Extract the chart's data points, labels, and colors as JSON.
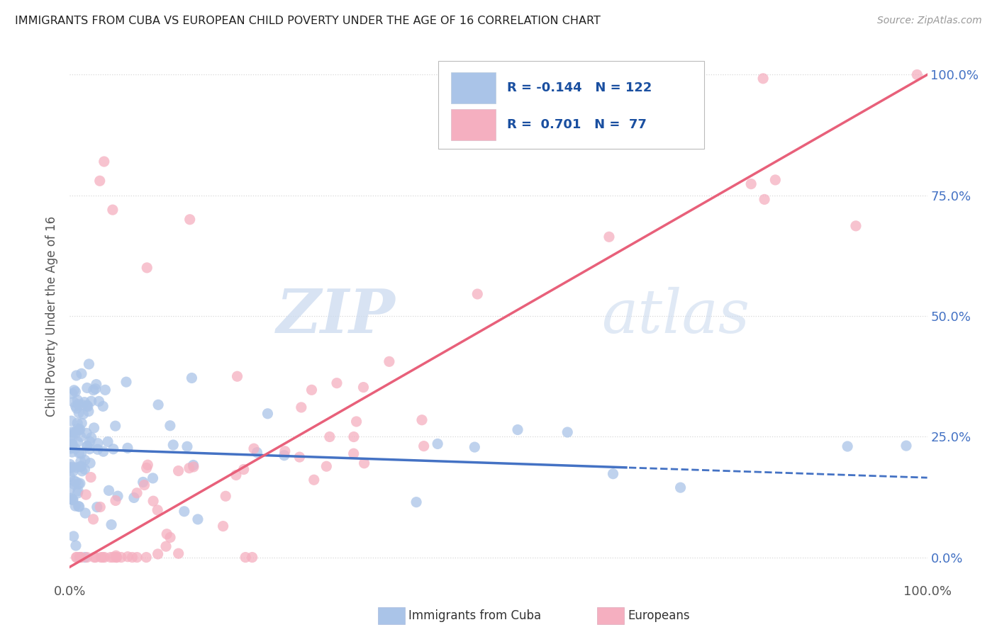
{
  "title": "IMMIGRANTS FROM CUBA VS EUROPEAN CHILD POVERTY UNDER THE AGE OF 16 CORRELATION CHART",
  "source": "Source: ZipAtlas.com",
  "ylabel": "Child Poverty Under the Age of 16",
  "R_cuba": -0.144,
  "N_cuba": 122,
  "R_euro": 0.701,
  "N_euro": 77,
  "cuba_color": "#aac4e8",
  "euro_color": "#f5afc0",
  "cuba_line_color": "#4472c4",
  "euro_line_color": "#e8607a",
  "watermark_zip": "ZIP",
  "watermark_atlas": "atlas",
  "background_color": "#ffffff",
  "xlim": [
    0.0,
    1.0
  ],
  "ylim": [
    -0.05,
    1.05
  ],
  "right_tick_color": "#4472c4",
  "grid_color": "#d8d8d8",
  "title_color": "#222222",
  "source_color": "#999999",
  "ylabel_color": "#555555",
  "tick_label_color": "#555555"
}
